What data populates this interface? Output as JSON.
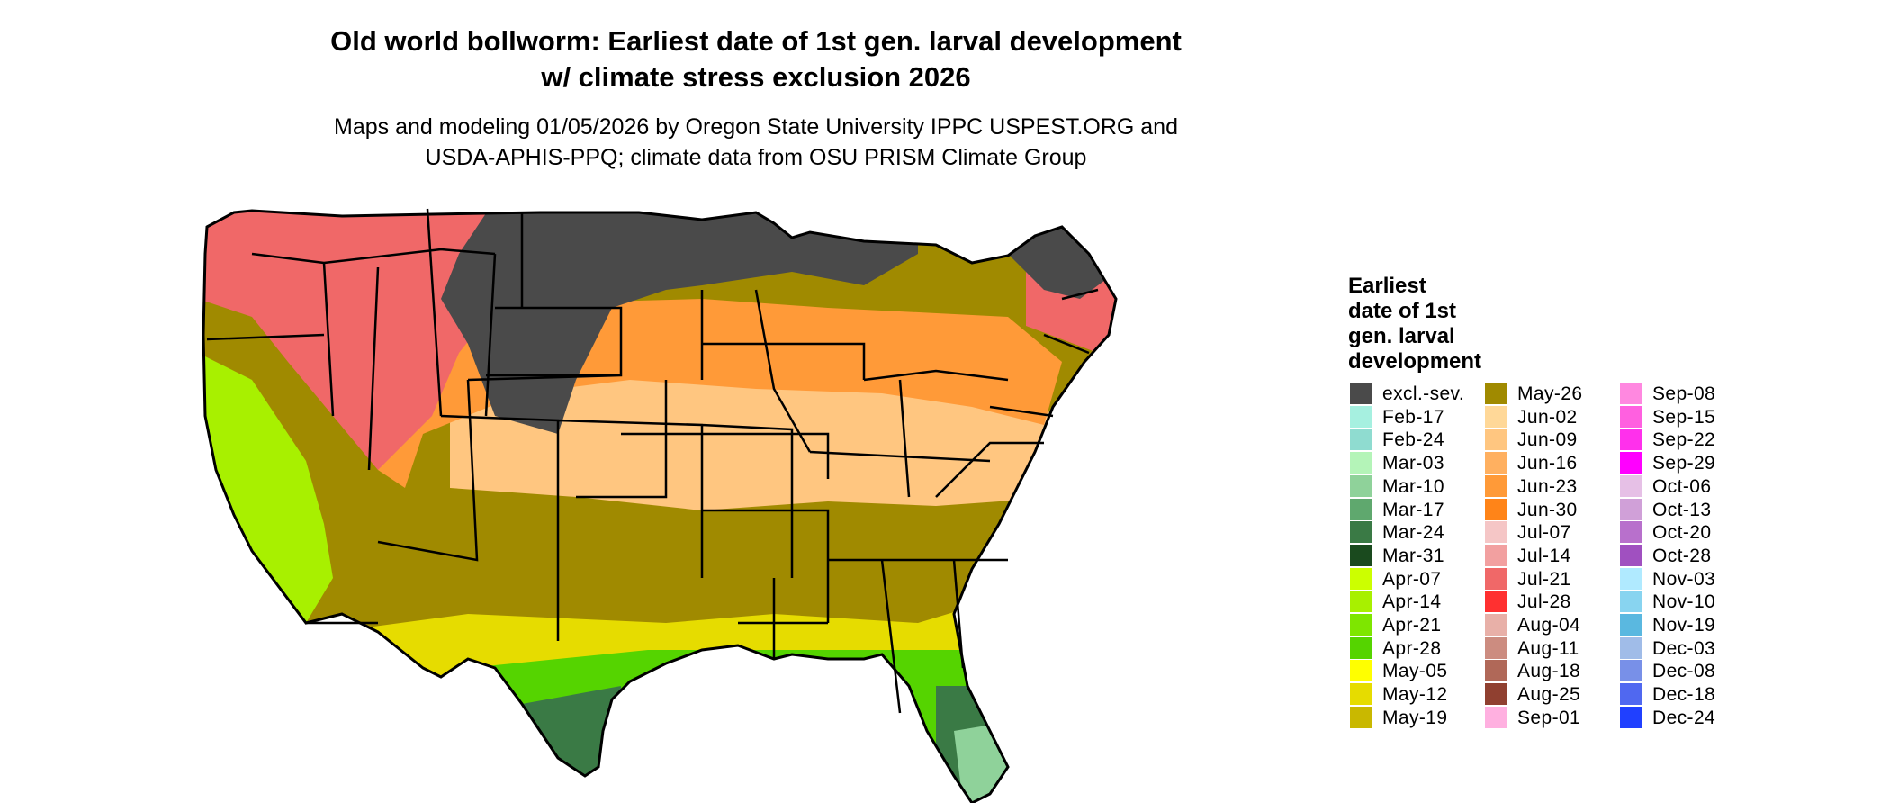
{
  "header": {
    "title_line1": "Old world bollworm: Earliest date of 1st gen. larval development",
    "title_line2": "w/ climate stress exclusion 2026",
    "subtitle_line1": "Maps and modeling 01/05/2026 by Oregon State University IPPC USPEST.ORG and",
    "subtitle_line2": "USDA-APHIS-PPQ; climate data from OSU PRISM Climate Group"
  },
  "legend": {
    "title_lines": [
      "Earliest",
      "date of 1st",
      "gen. larval",
      "development"
    ],
    "columns": [
      [
        {
          "label": "excl.-sev.",
          "color": "#4a4a4a"
        },
        {
          "label": "Feb-17",
          "color": "#a6f0e0"
        },
        {
          "label": "Feb-24",
          "color": "#8fdcd0"
        },
        {
          "label": "Mar-03",
          "color": "#b4f4b8"
        },
        {
          "label": "Mar-10",
          "color": "#8fd29a"
        },
        {
          "label": "Mar-17",
          "color": "#5fa86e"
        },
        {
          "label": "Mar-24",
          "color": "#3a7a45"
        },
        {
          "label": "Mar-31",
          "color": "#1a4a1e"
        },
        {
          "label": "Apr-07",
          "color": "#ccff00"
        },
        {
          "label": "Apr-14",
          "color": "#a8f000"
        },
        {
          "label": "Apr-21",
          "color": "#7ee600"
        },
        {
          "label": "Apr-28",
          "color": "#55d400"
        },
        {
          "label": "May-05",
          "color": "#ffff00"
        },
        {
          "label": "May-12",
          "color": "#e6dc00"
        },
        {
          "label": "May-19",
          "color": "#c9b800"
        }
      ],
      [
        {
          "label": "May-26",
          "color": "#a08a00"
        },
        {
          "label": "Jun-02",
          "color": "#ffd898"
        },
        {
          "label": "Jun-09",
          "color": "#ffc680"
        },
        {
          "label": "Jun-16",
          "color": "#ffb060"
        },
        {
          "label": "Jun-23",
          "color": "#ff9a38"
        },
        {
          "label": "Jun-30",
          "color": "#ff8418"
        },
        {
          "label": "Jul-07",
          "color": "#f5c6c6"
        },
        {
          "label": "Jul-14",
          "color": "#f2a0a0"
        },
        {
          "label": "Jul-21",
          "color": "#f06868"
        },
        {
          "label": "Jul-28",
          "color": "#ff3030"
        },
        {
          "label": "Aug-04",
          "color": "#e8b0a8"
        },
        {
          "label": "Aug-11",
          "color": "#cc8c80"
        },
        {
          "label": "Aug-18",
          "color": "#b06858"
        },
        {
          "label": "Aug-25",
          "color": "#904030"
        },
        {
          "label": "Sep-01",
          "color": "#ffb0e0"
        }
      ],
      [
        {
          "label": "Sep-08",
          "color": "#ff88e0"
        },
        {
          "label": "Sep-15",
          "color": "#ff60e0"
        },
        {
          "label": "Sep-22",
          "color": "#ff30ec"
        },
        {
          "label": "Sep-29",
          "color": "#ff00ff"
        },
        {
          "label": "Oct-06",
          "color": "#e6c0e6"
        },
        {
          "label": "Oct-13",
          "color": "#d0a0d8"
        },
        {
          "label": "Oct-20",
          "color": "#b870cc"
        },
        {
          "label": "Oct-28",
          "color": "#a050c0"
        },
        {
          "label": "Nov-03",
          "color": "#b0eaff"
        },
        {
          "label": "Nov-10",
          "color": "#88d4f0"
        },
        {
          "label": "Nov-19",
          "color": "#5ab8e0"
        },
        {
          "label": "Dec-03",
          "color": "#a0bce8"
        },
        {
          "label": "Dec-08",
          "color": "#7890e8"
        },
        {
          "label": "Dec-18",
          "color": "#5068f0"
        },
        {
          "label": "Dec-24",
          "color": "#2040ff"
        }
      ]
    ]
  },
  "map_zones": [
    {
      "zone": "northern-plains-upper-midwest",
      "date": "excl.-sev.",
      "color": "#4a4a4a"
    },
    {
      "zone": "northern-rockies-great-basin",
      "date": "Jul-21",
      "color": "#f06868"
    },
    {
      "zone": "central-plains-ohio-valley",
      "date": "Jun-23",
      "color": "#ff9a38"
    },
    {
      "zone": "southern-plains-tennessee",
      "date": "Jun-09",
      "color": "#ffc680"
    },
    {
      "zone": "south-central",
      "date": "May-26",
      "color": "#a08a00"
    },
    {
      "zone": "gulf-states",
      "date": "May-12",
      "color": "#e6dc00"
    },
    {
      "zone": "gulf-coast",
      "date": "Apr-28",
      "color": "#55d400"
    },
    {
      "zone": "south-texas-florida",
      "date": "Mar-24",
      "color": "#3a7a45"
    },
    {
      "zone": "south-florida",
      "date": "Mar-10",
      "color": "#8fd29a"
    },
    {
      "zone": "california-valley",
      "date": "Apr-14",
      "color": "#a8f000"
    }
  ]
}
